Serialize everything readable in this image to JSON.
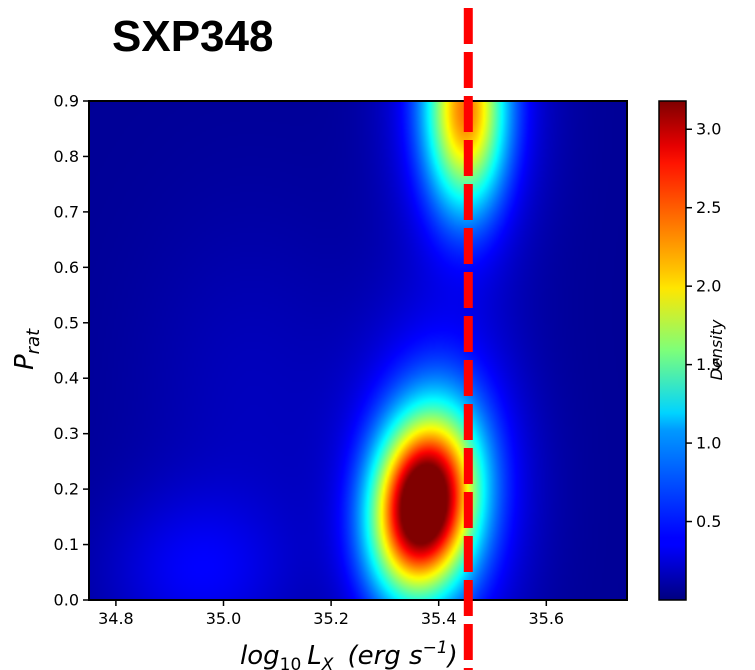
{
  "chart_data": {
    "type": "heatmap",
    "title": "SXP348",
    "xlabel": {
      "base": "log",
      "base_sub": "10",
      "var": "L",
      "var_sub": "X",
      "unit_open": "(erg s",
      "unit_sup": "−1",
      "unit_close": ")"
    },
    "ylabel": {
      "base": "P",
      "sub": "rat"
    },
    "colorbar_label": "Density",
    "xlim": [
      34.75,
      35.75
    ],
    "ylim": [
      0.0,
      0.9
    ],
    "clim": [
      0.0,
      3.18
    ],
    "x_ticks": [
      34.8,
      35.0,
      35.2,
      35.4,
      35.6
    ],
    "x_tick_labels": [
      "34.8",
      "35.0",
      "35.2",
      "35.4",
      "35.6"
    ],
    "y_ticks": [
      0.0,
      0.1,
      0.2,
      0.3,
      0.4,
      0.5,
      0.6,
      0.7,
      0.8,
      0.9
    ],
    "y_tick_labels": [
      "0.0",
      "0.1",
      "0.2",
      "0.3",
      "0.4",
      "0.5",
      "0.6",
      "0.7",
      "0.8",
      "0.9"
    ],
    "cb_ticks": [
      0.5,
      1.0,
      1.5,
      2.0,
      2.5,
      3.0
    ],
    "cb_tick_labels": [
      "0.5",
      "1.0",
      "1.5",
      "2.0",
      "2.5",
      "3.0"
    ],
    "colormap": "jet",
    "density_peaks": [
      {
        "x": 35.37,
        "y": 0.17,
        "peak_density": 3.15
      },
      {
        "x": 35.45,
        "y": 0.88,
        "peak_density": 1.85
      }
    ],
    "reference_line": {
      "x": 35.455,
      "style": "dashed",
      "color": "#ff0000"
    }
  }
}
